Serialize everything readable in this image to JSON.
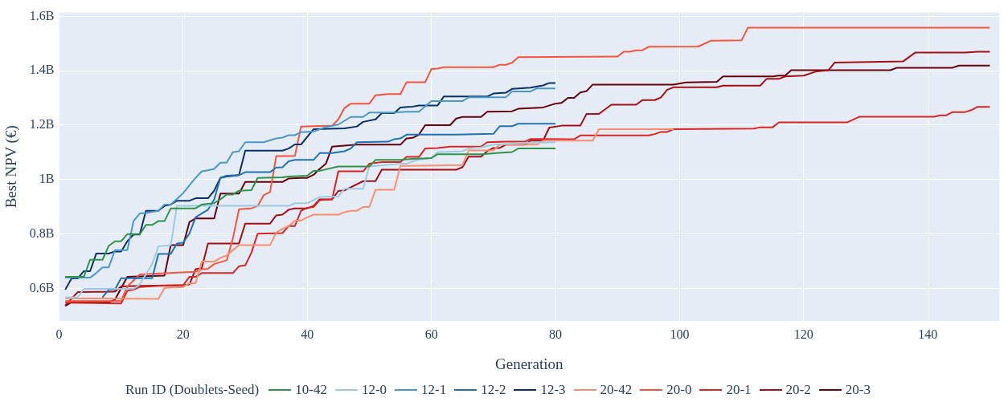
{
  "chart_data": {
    "type": "line",
    "xlabel": "Generation",
    "ylabel": "Best NPV (€)",
    "legend_title": "Run ID (Doublets-Seed)",
    "legend": "bottom",
    "grid": true,
    "xlim": [
      0,
      151.5
    ],
    "xticks": [
      0,
      20,
      40,
      60,
      80,
      100,
      120,
      140
    ],
    "ylim": [
      0.48,
      1.614
    ],
    "yticks": [
      {
        "value": 0.6,
        "label": "0.6B"
      },
      {
        "value": 0.8,
        "label": "0.8B"
      },
      {
        "value": 1,
        "label": "1B"
      },
      {
        "value": 1.2,
        "label": "1.2B"
      },
      {
        "value": 1.4,
        "label": "1.4B"
      },
      {
        "value": 1.6,
        "label": "1.6B"
      }
    ],
    "series": [
      {
        "name": "10-42",
        "color": "#2e9348",
        "x": [
          1,
          4,
          5,
          7,
          8,
          9,
          10,
          11,
          13,
          14,
          15,
          16,
          17,
          18,
          22,
          23,
          25,
          26,
          27,
          28,
          29,
          31,
          32,
          36,
          37,
          40,
          41,
          42,
          45,
          50,
          51,
          55,
          57,
          60,
          61,
          68,
          71,
          73,
          74,
          80
        ],
        "values": [
          0.642,
          0.642,
          0.705,
          0.705,
          0.756,
          0.773,
          0.773,
          0.799,
          0.799,
          0.833,
          0.833,
          0.847,
          0.847,
          0.894,
          0.894,
          0.908,
          0.913,
          0.927,
          0.945,
          0.945,
          0.959,
          0.961,
          1.006,
          1.008,
          1.011,
          1.014,
          1.032,
          1.032,
          1.048,
          1.048,
          1.072,
          1.072,
          1.076,
          1.079,
          1.093,
          1.093,
          1.098,
          1.101,
          1.114,
          1.114
        ]
      },
      {
        "name": "12-0",
        "color": "#9ecae1",
        "x": [
          1,
          3,
          4,
          12,
          13,
          15,
          16,
          18,
          19,
          37,
          38,
          40,
          41,
          42,
          45,
          46,
          49,
          50,
          51,
          55,
          56,
          57,
          58,
          60,
          61,
          65,
          66,
          68,
          70,
          73,
          75,
          80
        ],
        "values": [
          0.567,
          0.567,
          0.598,
          0.598,
          0.614,
          0.689,
          0.754,
          0.759,
          0.903,
          0.903,
          0.913,
          0.913,
          0.924,
          0.936,
          0.938,
          0.966,
          0.966,
          1.048,
          1.05,
          1.058,
          1.058,
          1.067,
          1.073,
          1.079,
          1.1,
          1.104,
          1.114,
          1.118,
          1.128,
          1.132,
          1.135,
          1.137
        ]
      },
      {
        "name": "12-1",
        "color": "#4a98c9",
        "x": [
          1,
          5,
          6,
          7,
          8,
          9,
          11,
          12,
          13,
          14,
          16,
          17,
          18,
          20,
          22,
          23,
          24,
          25,
          26,
          27,
          28,
          29,
          30,
          33,
          35,
          36,
          37,
          38,
          39,
          41,
          43,
          45,
          47,
          49,
          50,
          54,
          56,
          58,
          60,
          65,
          66,
          72,
          73,
          76,
          77,
          80
        ],
        "values": [
          0.639,
          0.639,
          0.656,
          0.677,
          0.677,
          0.74,
          0.74,
          0.847,
          0.875,
          0.877,
          0.885,
          0.908,
          0.908,
          0.95,
          1.006,
          1.03,
          1.034,
          1.039,
          1.062,
          1.062,
          1.1,
          1.104,
          1.137,
          1.137,
          1.151,
          1.154,
          1.163,
          1.163,
          1.174,
          1.176,
          1.193,
          1.202,
          1.23,
          1.23,
          1.246,
          1.246,
          1.249,
          1.249,
          1.288,
          1.288,
          1.302,
          1.302,
          1.324,
          1.324,
          1.335,
          1.335
        ]
      },
      {
        "name": "12-2",
        "color": "#2171b5",
        "x": [
          7,
          8,
          9,
          10,
          15,
          16,
          18,
          19,
          20,
          21,
          22,
          24,
          25,
          26,
          27,
          29,
          30,
          34,
          35,
          36,
          37,
          38,
          41,
          42,
          44,
          46,
          47,
          48,
          53,
          54,
          55,
          56,
          64,
          70,
          71,
          73,
          74,
          80
        ],
        "values": [
          0.567,
          0.595,
          0.595,
          0.637,
          0.637,
          0.726,
          0.726,
          0.765,
          0.768,
          0.801,
          0.861,
          0.889,
          0.927,
          1.006,
          1.014,
          1.016,
          1.027,
          1.027,
          1.044,
          1.045,
          1.067,
          1.072,
          1.072,
          1.097,
          1.097,
          1.104,
          1.114,
          1.137,
          1.139,
          1.148,
          1.151,
          1.165,
          1.165,
          1.168,
          1.196,
          1.196,
          1.205,
          1.205
        ]
      },
      {
        "name": "12-3",
        "color": "#08306b",
        "x": [
          1,
          2,
          3,
          4,
          5,
          6,
          8,
          9,
          10,
          11,
          12,
          13,
          14,
          16,
          17,
          18,
          19,
          21,
          22,
          24,
          25,
          26,
          27,
          29,
          30,
          36,
          37,
          38,
          39,
          41,
          46,
          48,
          49,
          51,
          52,
          54,
          55,
          57,
          58,
          61,
          62,
          69,
          70,
          72,
          73,
          76,
          77,
          78,
          79,
          80
        ],
        "values": [
          0.595,
          0.636,
          0.636,
          0.663,
          0.663,
          0.728,
          0.728,
          0.735,
          0.735,
          0.773,
          0.798,
          0.798,
          0.885,
          0.885,
          0.903,
          0.908,
          0.922,
          0.922,
          0.931,
          0.931,
          0.959,
          1.006,
          1.011,
          1.016,
          1.106,
          1.106,
          1.114,
          1.129,
          1.129,
          1.185,
          1.188,
          1.195,
          1.212,
          1.221,
          1.244,
          1.244,
          1.265,
          1.268,
          1.272,
          1.272,
          1.305,
          1.305,
          1.316,
          1.319,
          1.333,
          1.338,
          1.342,
          1.346,
          1.355,
          1.355
        ]
      },
      {
        "name": "20-42",
        "color": "#fc8d6f",
        "x": [
          1,
          16,
          17,
          20,
          21,
          22,
          23,
          25,
          26,
          27,
          28,
          29,
          34,
          35,
          36,
          37,
          38,
          39,
          40,
          41,
          45,
          46,
          47,
          48,
          49,
          50,
          51,
          54,
          55,
          65,
          66,
          70,
          71,
          77,
          78,
          86,
          87,
          99
        ],
        "values": [
          0.563,
          0.561,
          0.602,
          0.605,
          0.619,
          0.619,
          0.698,
          0.698,
          0.712,
          0.721,
          0.74,
          0.759,
          0.759,
          0.805,
          0.819,
          0.829,
          0.849,
          0.849,
          0.861,
          0.871,
          0.871,
          0.88,
          0.885,
          0.885,
          0.899,
          0.899,
          0.962,
          0.962,
          1.05,
          1.053,
          1.107,
          1.107,
          1.128,
          1.128,
          1.143,
          1.143,
          1.185,
          1.185
        ]
      },
      {
        "name": "20-0",
        "color": "#f6553c",
        "x": [
          1,
          10,
          11,
          13,
          22,
          23,
          24,
          25,
          27,
          28,
          29,
          31,
          32,
          33,
          34,
          35,
          38,
          39,
          44,
          45,
          46,
          47,
          50,
          51,
          53,
          55,
          56,
          59,
          60,
          61,
          62,
          70,
          71,
          72,
          73,
          74,
          90,
          91,
          92,
          93,
          94,
          95,
          103,
          105,
          110,
          111,
          150
        ],
        "values": [
          0.553,
          0.553,
          0.607,
          0.651,
          0.661,
          0.67,
          0.672,
          0.689,
          0.703,
          0.782,
          0.891,
          0.894,
          0.903,
          0.943,
          0.954,
          1.086,
          1.086,
          1.195,
          1.198,
          1.221,
          1.263,
          1.279,
          1.279,
          1.31,
          1.314,
          1.314,
          1.358,
          1.358,
          1.406,
          1.408,
          1.413,
          1.413,
          1.422,
          1.422,
          1.429,
          1.45,
          1.452,
          1.47,
          1.47,
          1.475,
          1.475,
          1.488,
          1.489,
          1.51,
          1.512,
          1.558,
          1.558
        ]
      },
      {
        "name": "20-1",
        "color": "#d92523",
        "x": [
          1,
          10,
          11,
          12,
          13,
          16,
          20,
          21,
          22,
          23,
          28,
          29,
          30,
          31,
          32,
          36,
          37,
          38,
          39,
          40,
          41,
          42,
          44,
          45,
          49,
          50,
          52,
          55,
          56,
          58,
          59,
          61,
          63,
          68,
          69,
          72,
          75,
          76,
          83,
          84,
          95,
          96,
          97,
          98,
          99,
          112,
          113,
          115,
          116,
          127,
          129,
          141,
          142,
          143,
          144,
          146,
          147,
          148,
          150
        ],
        "values": [
          0.547,
          0.544,
          0.591,
          0.595,
          0.605,
          0.609,
          0.612,
          0.642,
          0.642,
          0.656,
          0.656,
          0.681,
          0.684,
          0.731,
          0.801,
          0.803,
          0.829,
          0.829,
          0.885,
          0.896,
          0.899,
          0.924,
          0.927,
          1.03,
          1.03,
          1.058,
          1.064,
          1.064,
          1.083,
          1.083,
          1.114,
          1.116,
          1.121,
          1.121,
          1.137,
          1.139,
          1.139,
          1.149,
          1.148,
          1.162,
          1.162,
          1.167,
          1.175,
          1.175,
          1.185,
          1.187,
          1.192,
          1.192,
          1.21,
          1.21,
          1.231,
          1.231,
          1.236,
          1.236,
          1.248,
          1.248,
          1.255,
          1.267,
          1.267
        ]
      },
      {
        "name": "20-2",
        "color": "#a50f15",
        "x": [
          1,
          3,
          9,
          10,
          13,
          20,
          21,
          22,
          23,
          24,
          29,
          30,
          34,
          35,
          36,
          37,
          38,
          40,
          41,
          42,
          44,
          45,
          46,
          49,
          51,
          52,
          64,
          65,
          66,
          68,
          69,
          70,
          71,
          72,
          75,
          76,
          78,
          79,
          81,
          84,
          85,
          87,
          89,
          93,
          94,
          96,
          97,
          98,
          99,
          106,
          107,
          113,
          114,
          116,
          117,
          120,
          122,
          124,
          125,
          136,
          138,
          146,
          148,
          150
        ],
        "values": [
          0.537,
          0.586,
          0.588,
          0.607,
          0.609,
          0.611,
          0.614,
          0.67,
          0.675,
          0.765,
          0.765,
          0.838,
          0.838,
          0.868,
          0.871,
          0.889,
          0.894,
          0.894,
          0.903,
          0.927,
          0.927,
          0.958,
          0.96,
          0.994,
          0.994,
          1.036,
          1.036,
          1.045,
          1.084,
          1.084,
          1.104,
          1.116,
          1.116,
          1.128,
          1.128,
          1.143,
          1.143,
          1.191,
          1.198,
          1.198,
          1.241,
          1.241,
          1.275,
          1.275,
          1.292,
          1.292,
          1.302,
          1.33,
          1.339,
          1.339,
          1.345,
          1.345,
          1.37,
          1.37,
          1.379,
          1.382,
          1.397,
          1.402,
          1.43,
          1.434,
          1.467,
          1.467,
          1.47,
          1.47
        ]
      },
      {
        "name": "20-3",
        "color": "#67000d",
        "x": [
          1,
          2,
          8,
          9,
          11,
          17,
          18,
          20,
          21,
          22,
          25,
          26,
          29,
          30,
          36,
          37,
          39,
          40,
          41,
          42,
          43,
          44,
          48,
          55,
          56,
          57,
          58,
          59,
          63,
          64,
          65,
          68,
          69,
          73,
          74,
          78,
          80,
          81,
          82,
          83,
          84,
          85,
          86,
          99,
          101,
          106,
          107,
          115,
          116,
          117,
          118,
          134,
          135,
          144,
          145,
          150
        ],
        "values": [
          0.535,
          0.549,
          0.549,
          0.558,
          0.642,
          0.647,
          0.759,
          0.759,
          0.843,
          0.857,
          0.857,
          0.948,
          0.948,
          0.991,
          0.991,
          1.004,
          1.006,
          1.006,
          1.017,
          1.039,
          1.058,
          1.121,
          1.128,
          1.128,
          1.151,
          1.153,
          1.165,
          1.2,
          1.2,
          1.224,
          1.23,
          1.23,
          1.249,
          1.251,
          1.26,
          1.265,
          1.279,
          1.282,
          1.3,
          1.3,
          1.32,
          1.325,
          1.349,
          1.349,
          1.357,
          1.359,
          1.379,
          1.379,
          1.382,
          1.382,
          1.402,
          1.402,
          1.411,
          1.411,
          1.419,
          1.419
        ]
      }
    ]
  }
}
